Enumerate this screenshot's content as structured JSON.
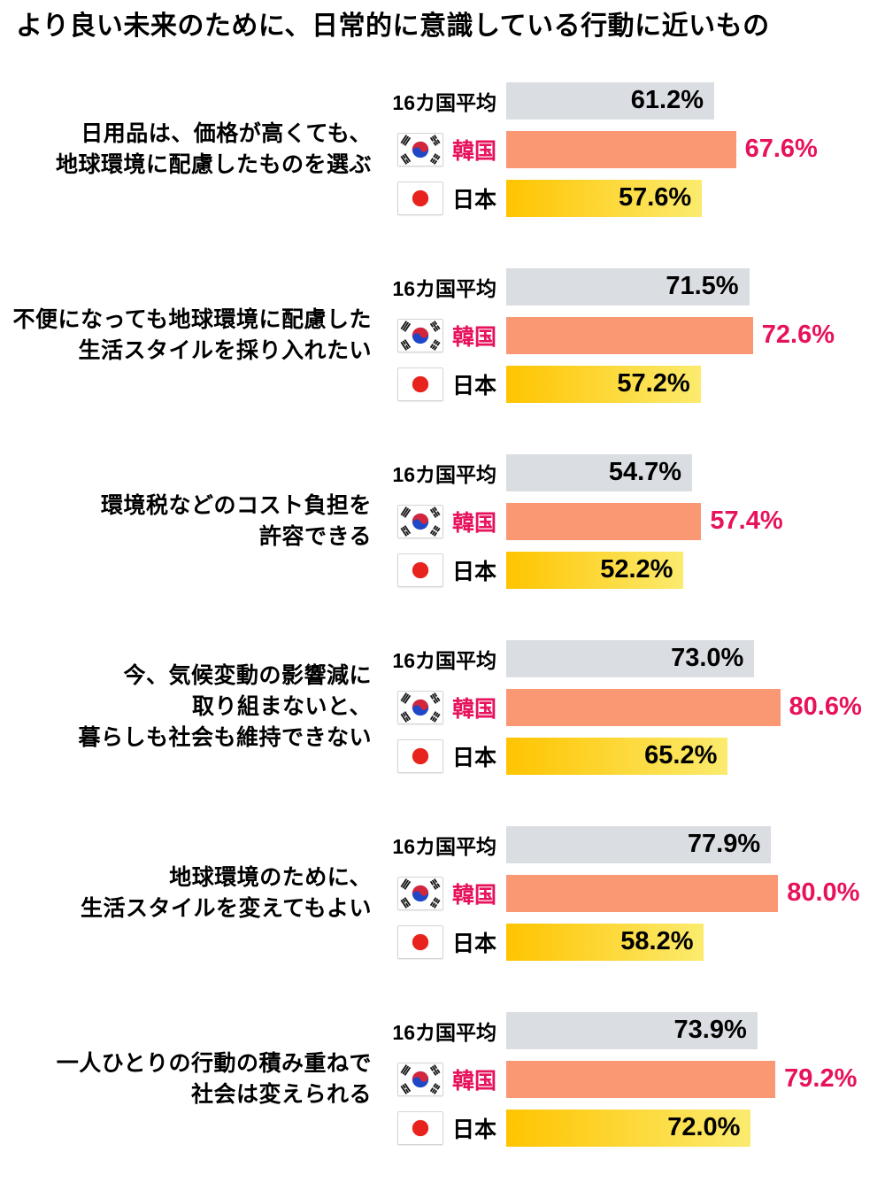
{
  "title": "より良い未来のために、日常的に意識している行動に近いもの",
  "legend": {
    "average": "16カ国平均",
    "korea": "韓国",
    "japan": "日本"
  },
  "colors": {
    "average_bar": "#DADEE2",
    "korea_bar": "#FA9873",
    "japan_bar_gradient_start": "#FFC400",
    "japan_bar_gradient_end": "#FBEB6E",
    "korea_accent_text": "#E7125C",
    "value_text": "#000000",
    "japan_flag_red": "#E8231E",
    "korea_flag_red": "#D4263B",
    "korea_flag_blue": "#1E48C8"
  },
  "chart_data": {
    "type": "bar",
    "orientation": "horizontal",
    "title": "より良い未来のために、日常的に意識している行動に近いもの",
    "unit": "%",
    "value_range": [
      0,
      100
    ],
    "legend_position": "left-of-bars",
    "grid": false,
    "series_names": [
      "16カ国平均",
      "韓国",
      "日本"
    ],
    "groups": [
      {
        "label_lines": [
          "日用品は、価格が高くても、",
          "地球環境に配慮したものを選ぶ"
        ],
        "values": {
          "average": 61.2,
          "korea": 67.6,
          "japan": 57.6
        }
      },
      {
        "label_lines": [
          "不便になっても地球環境に配慮した",
          "生活スタイルを採り入れたい"
        ],
        "values": {
          "average": 71.5,
          "korea": 72.6,
          "japan": 57.2
        }
      },
      {
        "label_lines": [
          "環境税などのコスト負担を",
          "許容できる"
        ],
        "values": {
          "average": 54.7,
          "korea": 57.4,
          "japan": 52.2
        }
      },
      {
        "label_lines": [
          "今、気候変動の影響減に",
          "取り組まないと、",
          "暮らしも社会も維持できない"
        ],
        "values": {
          "average": 73.0,
          "korea": 80.6,
          "japan": 65.2
        }
      },
      {
        "label_lines": [
          "地球環境のために、",
          "生活スタイルを変えてもよい"
        ],
        "values": {
          "average": 77.9,
          "korea": 80.0,
          "japan": 58.2
        }
      },
      {
        "label_lines": [
          "一人ひとりの行動の積み重ねで",
          "社会は変えられる"
        ],
        "values": {
          "average": 73.9,
          "korea": 79.2,
          "japan": 72.0
        }
      }
    ]
  }
}
